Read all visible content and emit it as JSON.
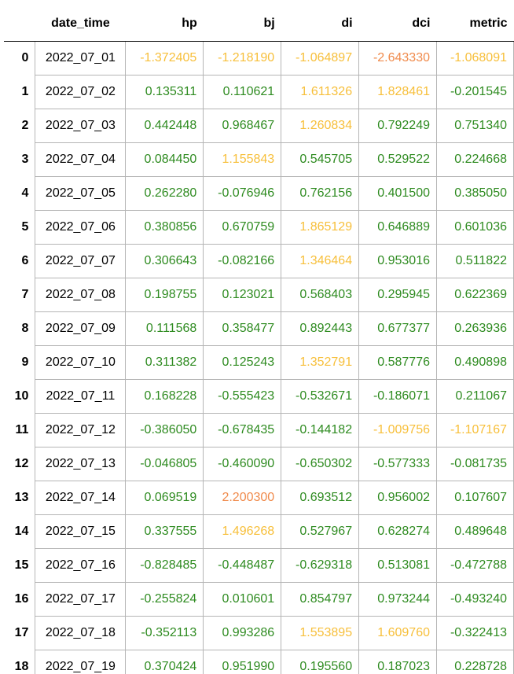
{
  "table": {
    "columns": [
      "",
      "date_time",
      "hp",
      "bj",
      "di",
      "dci",
      "metric"
    ],
    "colors": {
      "green": "#2e8b20",
      "yellow": "#f7bf3a",
      "orange": "#f08a4b"
    },
    "rows": [
      {
        "idx": "0",
        "date": "2022_07_01",
        "values": [
          {
            "v": "-1.372405",
            "c": "yellow"
          },
          {
            "v": "-1.218190",
            "c": "yellow"
          },
          {
            "v": "-1.064897",
            "c": "yellow"
          },
          {
            "v": "-2.643330",
            "c": "orange"
          },
          {
            "v": "-1.068091",
            "c": "yellow"
          }
        ]
      },
      {
        "idx": "1",
        "date": "2022_07_02",
        "values": [
          {
            "v": "0.135311",
            "c": "green"
          },
          {
            "v": "0.110621",
            "c": "green"
          },
          {
            "v": "1.611326",
            "c": "yellow"
          },
          {
            "v": "1.828461",
            "c": "yellow"
          },
          {
            "v": "-0.201545",
            "c": "green"
          }
        ]
      },
      {
        "idx": "2",
        "date": "2022_07_03",
        "values": [
          {
            "v": "0.442448",
            "c": "green"
          },
          {
            "v": "0.968467",
            "c": "green"
          },
          {
            "v": "1.260834",
            "c": "yellow"
          },
          {
            "v": "0.792249",
            "c": "green"
          },
          {
            "v": "0.751340",
            "c": "green"
          }
        ]
      },
      {
        "idx": "3",
        "date": "2022_07_04",
        "values": [
          {
            "v": "0.084450",
            "c": "green"
          },
          {
            "v": "1.155843",
            "c": "yellow"
          },
          {
            "v": "0.545705",
            "c": "green"
          },
          {
            "v": "0.529522",
            "c": "green"
          },
          {
            "v": "0.224668",
            "c": "green"
          }
        ]
      },
      {
        "idx": "4",
        "date": "2022_07_05",
        "values": [
          {
            "v": "0.262280",
            "c": "green"
          },
          {
            "v": "-0.076946",
            "c": "green"
          },
          {
            "v": "0.762156",
            "c": "green"
          },
          {
            "v": "0.401500",
            "c": "green"
          },
          {
            "v": "0.385050",
            "c": "green"
          }
        ]
      },
      {
        "idx": "5",
        "date": "2022_07_06",
        "values": [
          {
            "v": "0.380856",
            "c": "green"
          },
          {
            "v": "0.670759",
            "c": "green"
          },
          {
            "v": "1.865129",
            "c": "yellow"
          },
          {
            "v": "0.646889",
            "c": "green"
          },
          {
            "v": "0.601036",
            "c": "green"
          }
        ]
      },
      {
        "idx": "6",
        "date": "2022_07_07",
        "values": [
          {
            "v": "0.306643",
            "c": "green"
          },
          {
            "v": "-0.082166",
            "c": "green"
          },
          {
            "v": "1.346464",
            "c": "yellow"
          },
          {
            "v": "0.953016",
            "c": "green"
          },
          {
            "v": "0.511822",
            "c": "green"
          }
        ]
      },
      {
        "idx": "7",
        "date": "2022_07_08",
        "values": [
          {
            "v": "0.198755",
            "c": "green"
          },
          {
            "v": "0.123021",
            "c": "green"
          },
          {
            "v": "0.568403",
            "c": "green"
          },
          {
            "v": "0.295945",
            "c": "green"
          },
          {
            "v": "0.622369",
            "c": "green"
          }
        ]
      },
      {
        "idx": "8",
        "date": "2022_07_09",
        "values": [
          {
            "v": "0.111568",
            "c": "green"
          },
          {
            "v": "0.358477",
            "c": "green"
          },
          {
            "v": "0.892443",
            "c": "green"
          },
          {
            "v": "0.677377",
            "c": "green"
          },
          {
            "v": "0.263936",
            "c": "green"
          }
        ]
      },
      {
        "idx": "9",
        "date": "2022_07_10",
        "values": [
          {
            "v": "0.311382",
            "c": "green"
          },
          {
            "v": "0.125243",
            "c": "green"
          },
          {
            "v": "1.352791",
            "c": "yellow"
          },
          {
            "v": "0.587776",
            "c": "green"
          },
          {
            "v": "0.490898",
            "c": "green"
          }
        ]
      },
      {
        "idx": "10",
        "date": "2022_07_11",
        "values": [
          {
            "v": "0.168228",
            "c": "green"
          },
          {
            "v": "-0.555423",
            "c": "green"
          },
          {
            "v": "-0.532671",
            "c": "green"
          },
          {
            "v": "-0.186071",
            "c": "green"
          },
          {
            "v": "0.211067",
            "c": "green"
          }
        ]
      },
      {
        "idx": "11",
        "date": "2022_07_12",
        "values": [
          {
            "v": "-0.386050",
            "c": "green"
          },
          {
            "v": "-0.678435",
            "c": "green"
          },
          {
            "v": "-0.144182",
            "c": "green"
          },
          {
            "v": "-1.009756",
            "c": "yellow"
          },
          {
            "v": "-1.107167",
            "c": "yellow"
          }
        ]
      },
      {
        "idx": "12",
        "date": "2022_07_13",
        "values": [
          {
            "v": "-0.046805",
            "c": "green"
          },
          {
            "v": "-0.460090",
            "c": "green"
          },
          {
            "v": "-0.650302",
            "c": "green"
          },
          {
            "v": "-0.577333",
            "c": "green"
          },
          {
            "v": "-0.081735",
            "c": "green"
          }
        ]
      },
      {
        "idx": "13",
        "date": "2022_07_14",
        "values": [
          {
            "v": "0.069519",
            "c": "green"
          },
          {
            "v": "2.200300",
            "c": "orange"
          },
          {
            "v": "0.693512",
            "c": "green"
          },
          {
            "v": "0.956002",
            "c": "green"
          },
          {
            "v": "0.107607",
            "c": "green"
          }
        ]
      },
      {
        "idx": "14",
        "date": "2022_07_15",
        "values": [
          {
            "v": "0.337555",
            "c": "green"
          },
          {
            "v": "1.496268",
            "c": "yellow"
          },
          {
            "v": "0.527967",
            "c": "green"
          },
          {
            "v": "0.628274",
            "c": "green"
          },
          {
            "v": "0.489648",
            "c": "green"
          }
        ]
      },
      {
        "idx": "15",
        "date": "2022_07_16",
        "values": [
          {
            "v": "-0.828485",
            "c": "green"
          },
          {
            "v": "-0.448487",
            "c": "green"
          },
          {
            "v": "-0.629318",
            "c": "green"
          },
          {
            "v": "0.513081",
            "c": "green"
          },
          {
            "v": "-0.472788",
            "c": "green"
          }
        ]
      },
      {
        "idx": "16",
        "date": "2022_07_17",
        "values": [
          {
            "v": "-0.255824",
            "c": "green"
          },
          {
            "v": "0.010601",
            "c": "green"
          },
          {
            "v": "0.854797",
            "c": "green"
          },
          {
            "v": "0.973244",
            "c": "green"
          },
          {
            "v": "-0.493240",
            "c": "green"
          }
        ]
      },
      {
        "idx": "17",
        "date": "2022_07_18",
        "values": [
          {
            "v": "-0.352113",
            "c": "green"
          },
          {
            "v": "0.993286",
            "c": "green"
          },
          {
            "v": "1.553895",
            "c": "yellow"
          },
          {
            "v": "1.609760",
            "c": "yellow"
          },
          {
            "v": "-0.322413",
            "c": "green"
          }
        ]
      },
      {
        "idx": "18",
        "date": "2022_07_19",
        "values": [
          {
            "v": "0.370424",
            "c": "green"
          },
          {
            "v": "0.951990",
            "c": "green"
          },
          {
            "v": "0.195560",
            "c": "green"
          },
          {
            "v": "0.187023",
            "c": "green"
          },
          {
            "v": "0.228728",
            "c": "green"
          }
        ]
      }
    ]
  }
}
